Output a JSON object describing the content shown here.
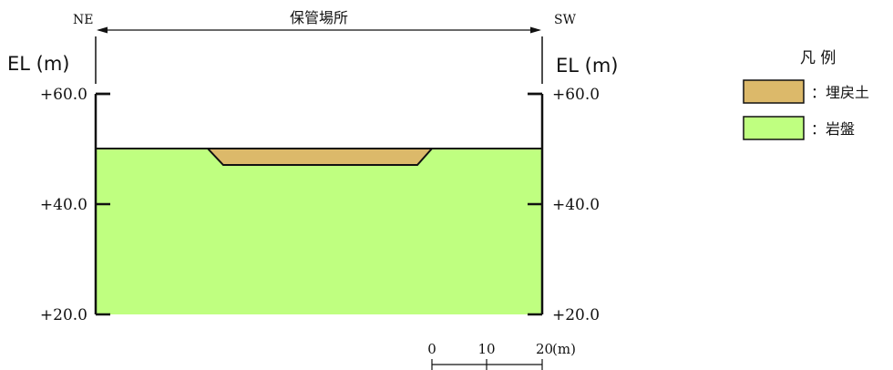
{
  "header": {
    "dir_left": "NE",
    "dir_right": "SW",
    "span_label": "保管場所"
  },
  "axis": {
    "unit_left": "EL (m)",
    "unit_right": "EL (m)",
    "ticks": [
      {
        "value": 60,
        "label": "+60.0"
      },
      {
        "value": 40,
        "label": "+40.0"
      },
      {
        "value": 20,
        "label": "+20.0"
      }
    ]
  },
  "section": {
    "ground_el": 50,
    "bottom_el": 20,
    "fill_bottom_el": 47
  },
  "legend": {
    "title": "凡 例",
    "items": [
      {
        "label": "：埋戻土",
        "color": "#dcb96a"
      },
      {
        "label": "：岩盤",
        "color": "#bfff80"
      }
    ]
  },
  "scale_bar": {
    "ticks": [
      "0",
      "10",
      "20"
    ],
    "unit": "(m)"
  },
  "colors": {
    "rock": "#bfff80",
    "fill": "#dcb96a",
    "line": "#111111"
  }
}
